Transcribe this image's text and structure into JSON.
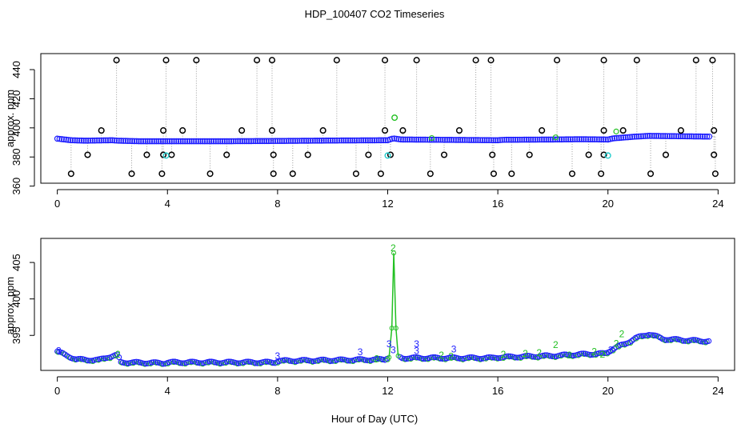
{
  "chart_data": {
    "type": "scatter",
    "title": "HDP_100407  CO2 Timeseries",
    "xlabel": "Hour of Day (UTC)",
    "colors": {
      "blue": "#1f1fff",
      "green": "#22c022",
      "cyan": "#22cccc",
      "black": "#000000",
      "gray": "#9a9a9a"
    },
    "panels": [
      {
        "ylabel": "approx. ppm",
        "xlim": [
          -0.6,
          24.6
        ],
        "ylim": [
          362,
          451
        ],
        "xticks": [
          "0",
          "4",
          "8",
          "12",
          "16",
          "20",
          "24"
        ],
        "yticks": [
          "360",
          "380",
          "400",
          "420",
          "440"
        ],
        "baseline": [
          [
            0,
            392.6
          ],
          [
            0.5,
            391.5
          ],
          [
            1,
            391.2
          ],
          [
            2,
            391.5
          ],
          [
            2.2,
            391.2
          ],
          [
            3,
            390.8
          ],
          [
            4,
            390.8
          ],
          [
            6,
            390.8
          ],
          [
            8,
            391.0
          ],
          [
            10,
            391.3
          ],
          [
            12,
            391.5
          ],
          [
            12.2,
            392.8
          ],
          [
            12.5,
            392.0
          ],
          [
            14,
            391.8
          ],
          [
            16,
            391.5
          ],
          [
            16.2,
            391.8
          ],
          [
            18,
            392.0
          ],
          [
            19,
            392.2
          ],
          [
            20,
            392.0
          ],
          [
            20.2,
            392.8
          ],
          [
            21,
            394.0
          ],
          [
            21.5,
            394.5
          ],
          [
            23.7,
            394.0
          ]
        ],
        "outliers_high": [
          2.15,
          3.95,
          5.05,
          7.25,
          7.8,
          10.15,
          11.9,
          13.05,
          15.2,
          15.75,
          18.15,
          19.85,
          21.05,
          23.2,
          23.8
        ],
        "outliers_low": [
          0.5,
          2.7,
          3.8,
          5.55,
          7.85,
          8.55,
          10.85,
          11.75,
          13.55,
          15.85,
          16.5,
          18.7,
          19.75,
          21.55,
          23.9
        ],
        "outliers_mid_low": [
          1.1,
          3.25,
          3.85,
          4.15,
          6.15,
          7.85,
          9.1,
          11.3,
          12.1,
          14.05,
          15.8,
          17.15,
          19.3,
          19.85,
          22.1,
          23.85
        ],
        "outliers_mid_high": [
          1.6,
          3.85,
          4.55,
          6.7,
          7.8,
          9.65,
          11.9,
          12.55,
          14.6,
          17.6,
          19.85,
          20.55,
          22.65,
          23.85
        ],
        "cyan_points": [
          [
            3.95,
            381
          ],
          [
            12.0,
            381
          ],
          [
            12.25,
            407
          ],
          [
            20.0,
            381
          ]
        ],
        "green_points": [
          [
            18.1,
            393.5
          ],
          [
            20.3,
            397.5
          ],
          [
            13.6,
            393.0
          ]
        ]
      },
      {
        "ylabel": "approx. ppm",
        "xlim": [
          -0.6,
          24.6
        ],
        "ylim": [
          390.2,
          408.3
        ],
        "xticks": [
          "0",
          "4",
          "8",
          "12",
          "16",
          "20",
          "24"
        ],
        "yticks": [
          "395",
          "400",
          "405"
        ],
        "baseline": [
          [
            0,
            392.8
          ],
          [
            0.3,
            392.3
          ],
          [
            0.7,
            391.7
          ],
          [
            1.5,
            391.6
          ],
          [
            1.8,
            392.0
          ],
          [
            2.2,
            392.3
          ],
          [
            2.3,
            391.3
          ],
          [
            3.9,
            391.2
          ],
          [
            4.0,
            391.3
          ],
          [
            6,
            391.3
          ],
          [
            7.9,
            391.3
          ],
          [
            8.0,
            391.5
          ],
          [
            10,
            391.6
          ],
          [
            11.9,
            391.7
          ],
          [
            12.0,
            392.0
          ],
          [
            12.15,
            392.8
          ],
          [
            12.3,
            392.3
          ],
          [
            12.5,
            391.9
          ],
          [
            14,
            391.9
          ],
          [
            15.8,
            391.9
          ],
          [
            16.0,
            392.0
          ],
          [
            17,
            392.1
          ],
          [
            18,
            392.2
          ],
          [
            19,
            392.4
          ],
          [
            19.9,
            392.5
          ],
          [
            20.2,
            393.2
          ],
          [
            20.6,
            393.8
          ],
          [
            21.0,
            394.6
          ],
          [
            21.5,
            395.2
          ],
          [
            22,
            394.5
          ],
          [
            23,
            394.3
          ],
          [
            23.7,
            394.2
          ]
        ],
        "spike": [
          [
            12.05,
            392.0
          ],
          [
            12.15,
            396.0
          ],
          [
            12.22,
            406.3
          ],
          [
            12.3,
            396.0
          ],
          [
            12.38,
            392.2
          ]
        ],
        "labels_green": [
          {
            "x": 12.2,
            "y": 407.0,
            "t": "2"
          },
          {
            "x": 2.2,
            "y": 392.4,
            "t": "2"
          },
          {
            "x": 11.6,
            "y": 391.8,
            "t": "2"
          },
          {
            "x": 13.95,
            "y": 392.3,
            "t": "2"
          },
          {
            "x": 14.3,
            "y": 392.1,
            "t": "2"
          },
          {
            "x": 16.2,
            "y": 392.4,
            "t": "2"
          },
          {
            "x": 17.0,
            "y": 392.5,
            "t": "2"
          },
          {
            "x": 17.5,
            "y": 392.6,
            "t": "2"
          },
          {
            "x": 18.1,
            "y": 393.7,
            "t": "2"
          },
          {
            "x": 18.6,
            "y": 392.3,
            "t": "2"
          },
          {
            "x": 19.5,
            "y": 392.8,
            "t": "2"
          },
          {
            "x": 19.8,
            "y": 392.4,
            "t": "2"
          },
          {
            "x": 20.5,
            "y": 395.2,
            "t": "2"
          },
          {
            "x": 20.3,
            "y": 393.9,
            "t": "2"
          }
        ],
        "labels_blue": [
          {
            "x": 0.05,
            "y": 392.9,
            "t": "3"
          },
          {
            "x": 8.0,
            "y": 392.2,
            "t": "3"
          },
          {
            "x": 11.0,
            "y": 392.7,
            "t": "3"
          },
          {
            "x": 12.05,
            "y": 393.8,
            "t": "3"
          },
          {
            "x": 12.2,
            "y": 393.0,
            "t": "3"
          },
          {
            "x": 13.05,
            "y": 393.8,
            "t": "3"
          },
          {
            "x": 13.05,
            "y": 392.9,
            "t": "3"
          },
          {
            "x": 14.4,
            "y": 393.1,
            "t": "3"
          },
          {
            "x": 20.1,
            "y": 393.0,
            "t": "3"
          }
        ]
      }
    ]
  }
}
